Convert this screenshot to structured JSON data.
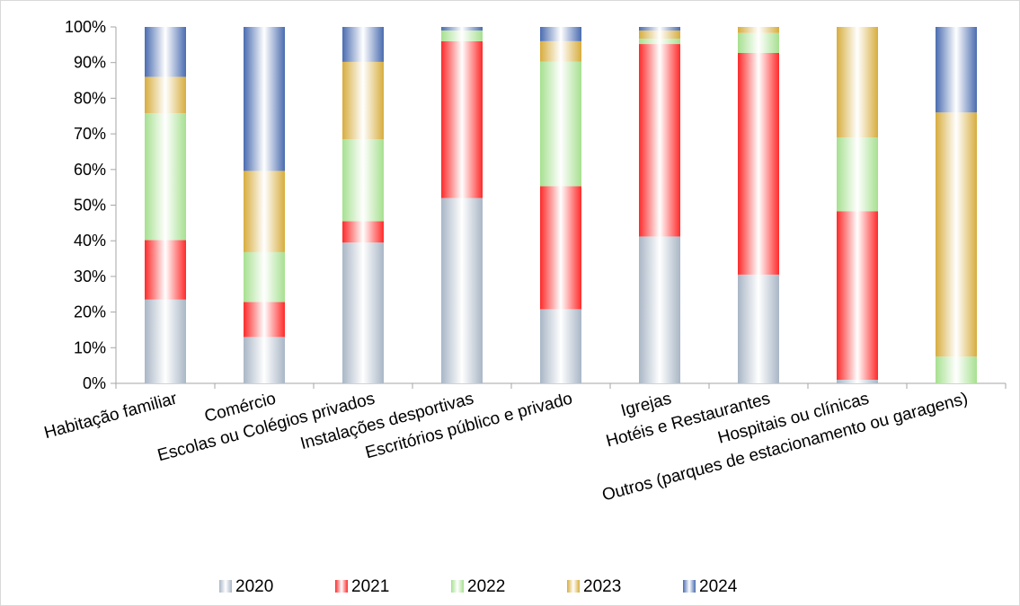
{
  "chart_data": {
    "type": "bar",
    "stacked": true,
    "percent": true,
    "categories": [
      "Habitação familiar",
      "Comércio",
      "Escolas ou Colégios privados",
      "Instalações desportivas",
      "Escritórios público e privado",
      "Igrejas",
      "Hotéis e Restaurantes",
      "Hospitais ou clínicas",
      "Outros (parques de estacionamento ou garagens)"
    ],
    "series": [
      {
        "name": "2020",
        "color": "#a9b6c6",
        "values": [
          23.5,
          13.0,
          39.5,
          52.0,
          20.8,
          41.2,
          30.5,
          1.0,
          0.0
        ]
      },
      {
        "name": "2021",
        "color": "#ff2a2a",
        "values": [
          16.7,
          9.8,
          6.0,
          44.0,
          34.5,
          54.0,
          62.2,
          47.3,
          0.0
        ]
      },
      {
        "name": "2022",
        "color": "#a6e090",
        "values": [
          35.6,
          14.0,
          23.0,
          3.0,
          35.0,
          1.5,
          5.6,
          20.7,
          7.5
        ]
      },
      {
        "name": "2023",
        "color": "#d7ad3e",
        "values": [
          10.2,
          22.8,
          21.7,
          0.0,
          5.7,
          2.3,
          1.7,
          31.0,
          68.5
        ]
      },
      {
        "name": "2024",
        "color": "#4a6cb0",
        "values": [
          14.0,
          40.4,
          9.8,
          1.0,
          4.0,
          1.0,
          0.0,
          0.0,
          24.0
        ]
      }
    ],
    "yticks": [
      "0%",
      "10%",
      "20%",
      "30%",
      "40%",
      "50%",
      "60%",
      "70%",
      "80%",
      "90%",
      "100%"
    ],
    "ylim": [
      0,
      100
    ],
    "legend_position": "bottom",
    "grid": false
  }
}
